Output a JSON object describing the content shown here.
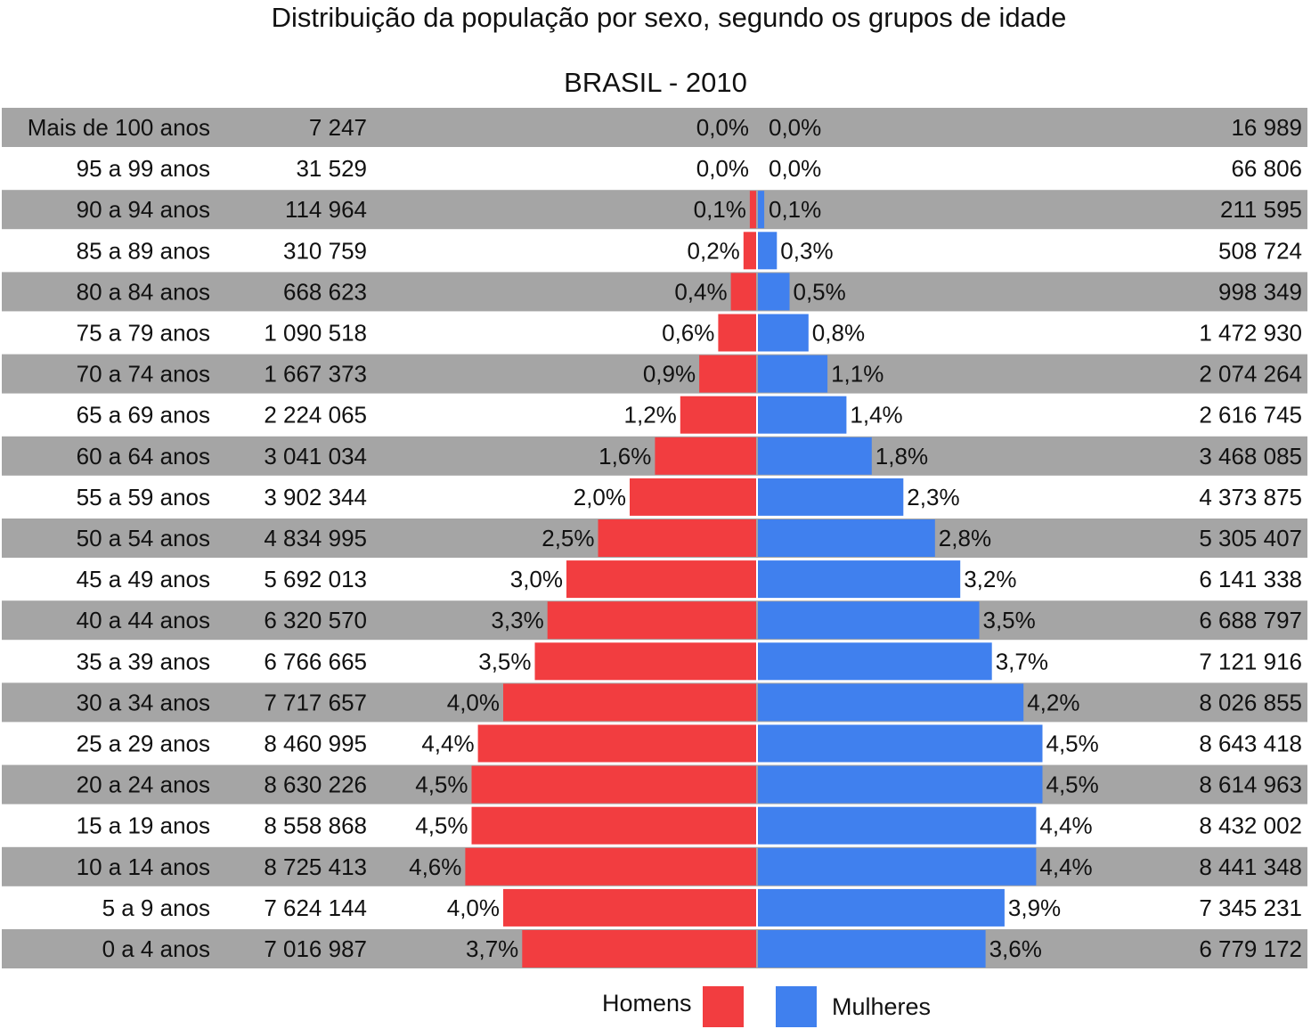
{
  "chart_data": {
    "type": "bar",
    "orientation": "horizontal-pyramid",
    "title": "Distribuição da população por sexo, segundo os grupos de idade",
    "subtitle": "BRASIL - 2010",
    "categories": [
      "Mais de 100 anos",
      "95 a 99 anos",
      "90 a 94 anos",
      "85 a 89 anos",
      "80 a 84 anos",
      "75 a 79 anos",
      "70 a 74 anos",
      "65 a 69 anos",
      "60 a 64 anos",
      "55 a 59 anos",
      "50 a 54 anos",
      "45 a 49 anos",
      "40 a 44 anos",
      "35 a 39 anos",
      "30 a 34 anos",
      "25 a 29 anos",
      "20 a 24 anos",
      "15 a 19 anos",
      "10 a 14 anos",
      "5 a 9 anos",
      "0 a 4 anos"
    ],
    "series": [
      {
        "name": "Homens",
        "color": "#f23d40",
        "values": [
          0.0,
          0.0,
          0.1,
          0.2,
          0.4,
          0.6,
          0.9,
          1.2,
          1.6,
          2.0,
          2.5,
          3.0,
          3.3,
          3.5,
          4.0,
          4.4,
          4.5,
          4.5,
          4.6,
          4.0,
          3.7
        ],
        "percent_labels": [
          "0,0%",
          "0,0%",
          "0,1%",
          "0,2%",
          "0,4%",
          "0,6%",
          "0,9%",
          "1,2%",
          "1,6%",
          "2,0%",
          "2,5%",
          "3,0%",
          "3,3%",
          "3,5%",
          "4,0%",
          "4,4%",
          "4,5%",
          "4,5%",
          "4,6%",
          "4,0%",
          "3,7%"
        ],
        "counts": [
          "7 247",
          "31 529",
          "114 964",
          "310 759",
          "668 623",
          "1 090 518",
          "1 667 373",
          "2 224 065",
          "3 041 034",
          "3 902 344",
          "4 834 995",
          "5 692 013",
          "6 320 570",
          "6 766 665",
          "7 717 657",
          "8 460 995",
          "8 630 226",
          "8 558 868",
          "8 725 413",
          "7 624 144",
          "7 016 987"
        ]
      },
      {
        "name": "Mulheres",
        "color": "#4080ee",
        "values": [
          0.0,
          0.0,
          0.1,
          0.3,
          0.5,
          0.8,
          1.1,
          1.4,
          1.8,
          2.3,
          2.8,
          3.2,
          3.5,
          3.7,
          4.2,
          4.5,
          4.5,
          4.4,
          4.4,
          3.9,
          3.6
        ],
        "percent_labels": [
          "0,0%",
          "0,0%",
          "0,1%",
          "0,3%",
          "0,5%",
          "0,8%",
          "1,1%",
          "1,4%",
          "1,8%",
          "2,3%",
          "2,8%",
          "3,2%",
          "3,5%",
          "3,7%",
          "4,2%",
          "4,5%",
          "4,5%",
          "4,4%",
          "4,4%",
          "3,9%",
          "3,6%"
        ],
        "counts": [
          "16 989",
          "66 806",
          "211 595",
          "508 724",
          "998 349",
          "1 472 930",
          "2 074 264",
          "2 616 745",
          "3 468 085",
          "4 373 875",
          "5 305 407",
          "6 141 338",
          "6 688 797",
          "7 121 916",
          "8 026 855",
          "8 643 418",
          "8 614 963",
          "8 432 002",
          "8 441 348",
          "7 345 231",
          "6 779 172"
        ]
      }
    ],
    "unit": "%",
    "xlim": [
      0,
      4.6
    ],
    "legend_position": "bottom-center",
    "row_band_color": "#a5a5a5",
    "grid": false
  }
}
